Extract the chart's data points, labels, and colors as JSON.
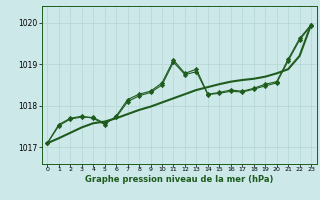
{
  "title": "Graphe pression niveau de la mer (hPa)",
  "background_color": "#cce8e8",
  "grid_color": "#b8d8d8",
  "line_color": "#1e5c1e",
  "marker_color": "#1e5c1e",
  "xlim": [
    -0.5,
    23.5
  ],
  "ylim": [
    1016.6,
    1020.4
  ],
  "yticks": [
    1017,
    1018,
    1019,
    1020
  ],
  "xticks": [
    0,
    1,
    2,
    3,
    4,
    5,
    6,
    7,
    8,
    9,
    10,
    11,
    12,
    13,
    14,
    15,
    16,
    17,
    18,
    19,
    20,
    21,
    22,
    23
  ],
  "series_jagged": [
    1017.1,
    1017.55,
    1017.7,
    1017.75,
    1017.7,
    1017.55,
    1017.75,
    1018.15,
    1018.28,
    1018.35,
    1018.55,
    1019.1,
    1018.78,
    1018.88,
    1018.28,
    1018.32,
    1018.38,
    1018.35,
    1018.42,
    1018.52,
    1018.58,
    1019.12,
    1019.62,
    1019.95
  ],
  "series_smooth": [
    1017.1,
    1017.52,
    1017.68,
    1017.73,
    1017.72,
    1017.58,
    1017.72,
    1018.1,
    1018.24,
    1018.32,
    1018.5,
    1019.05,
    1018.75,
    1018.82,
    1018.27,
    1018.3,
    1018.35,
    1018.33,
    1018.4,
    1018.48,
    1018.55,
    1019.08,
    1019.58,
    1019.93
  ],
  "trend_line": [
    1017.1,
    1017.22,
    1017.35,
    1017.48,
    1017.58,
    1017.62,
    1017.7,
    1017.8,
    1017.9,
    1017.98,
    1018.08,
    1018.18,
    1018.28,
    1018.38,
    1018.45,
    1018.52,
    1018.58,
    1018.62,
    1018.65,
    1018.7,
    1018.78,
    1018.88,
    1019.2,
    1019.95
  ]
}
